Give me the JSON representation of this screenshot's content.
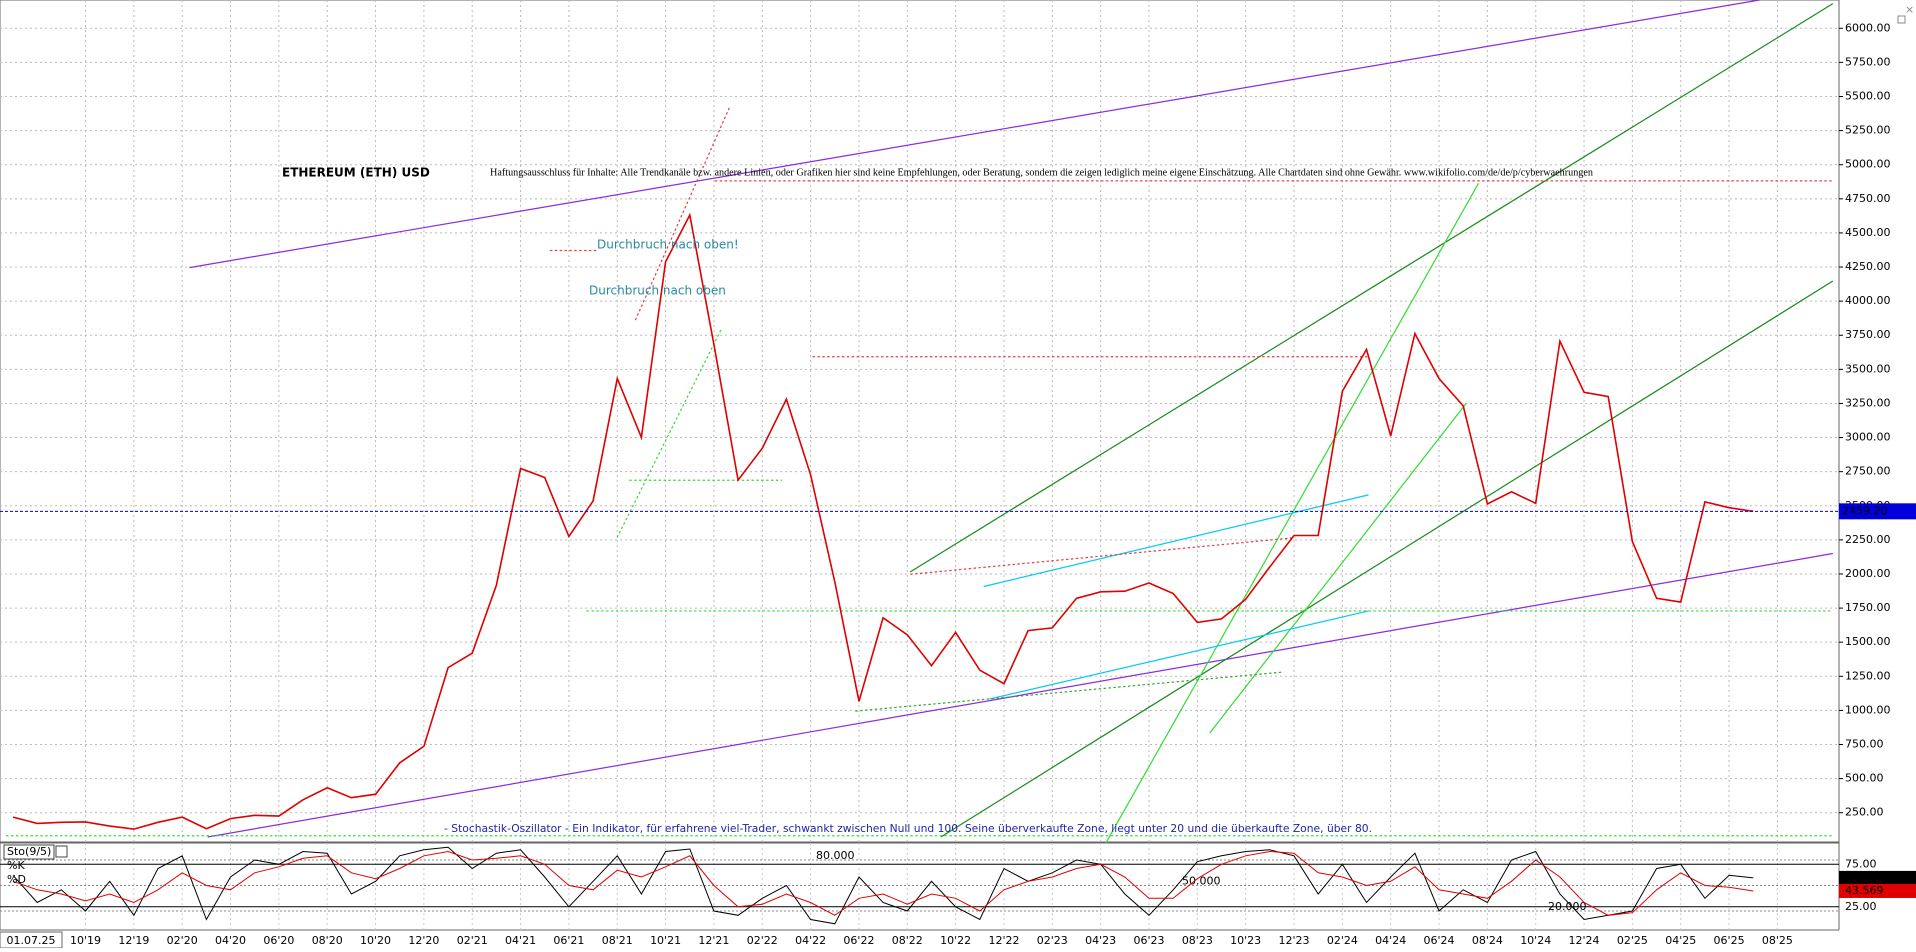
{
  "chart_data": [
    {
      "type": "line",
      "title": "ETHEREUM (ETH) USD",
      "disclaimer": "Haftungsausschluss für Inhalte: Alle Trendkanäle bzw. andere Linien, oder Grafiken hier sind keine Empfehlungen, oder Beratung, sondern die zeigen lediglich meine eigene Einschätzung. Alle Chartdaten sind ohne Gewähr. www.wikifolio.com/de/de/p/cyberwaehrungen",
      "annotations": [
        "Durchbruch nach oben!",
        "Durchbruch nach oben"
      ],
      "date_label": "01.07.25",
      "categories": [
        null,
        null,
        null,
        "10'19",
        null,
        "12'19",
        null,
        "02'20",
        null,
        "04'20",
        null,
        "06'20",
        null,
        "08'20",
        null,
        "10'20",
        null,
        "12'20",
        null,
        "02'21",
        null,
        "04'21",
        null,
        "06'21",
        null,
        "08'21",
        null,
        "10'21",
        null,
        "12'21",
        null,
        "02'22",
        null,
        "04'22",
        null,
        "06'22",
        null,
        "08'22",
        null,
        "10'22",
        null,
        "12'22",
        null,
        "02'23",
        null,
        "04'23",
        null,
        "06'23",
        null,
        "08'23",
        null,
        "10'23",
        null,
        "12'23",
        null,
        "02'24",
        null,
        "04'24",
        null,
        "06'24",
        null,
        "08'24",
        null,
        "10'24",
        null,
        "12'24",
        null,
        "02'25",
        null,
        "04'25",
        null,
        "06'25",
        null,
        "08'25"
      ],
      "values": [
        218,
        172,
        180,
        183,
        152,
        130,
        180,
        218,
        133,
        207,
        231,
        225,
        345,
        433,
        360,
        386,
        615,
        737,
        1314,
        1419,
        1918,
        2773,
        2707,
        2275,
        2536,
        3433,
        3001,
        4288,
        4631,
        3683,
        2688,
        2922,
        3282,
        2727,
        1942,
        1067,
        1679,
        1554,
        1328,
        1572,
        1295,
        1196,
        1585,
        1605,
        1822,
        1869,
        1874,
        1934,
        1857,
        1645,
        1671,
        1815,
        2052,
        2282,
        2283,
        3340,
        3646,
        3012,
        3762,
        3433,
        3232,
        2513,
        2602,
        2518,
        3706,
        3332,
        3300,
        2237,
        1822,
        1794,
        2528,
        2486,
        2459.2,
        null
      ],
      "color": "#e00000",
      "ylim": [
        50,
        6200
      ],
      "yticks": [
        {
          "value": 250,
          "label": "250.00"
        },
        {
          "value": 500,
          "label": "500.00"
        },
        {
          "value": 750,
          "label": "750.00"
        },
        {
          "value": 1000,
          "label": "1000.00"
        },
        {
          "value": 1250,
          "label": "1250.00"
        },
        {
          "value": 1500,
          "label": "1500.00"
        },
        {
          "value": 1750,
          "label": "1750.00"
        },
        {
          "value": 2000,
          "label": "2000.00"
        },
        {
          "value": 2250,
          "label": "2250.00"
        },
        {
          "value": 2500,
          "label": "2500.00"
        },
        {
          "value": 2750,
          "label": "2750.00"
        },
        {
          "value": 3000,
          "label": "3000.00"
        },
        {
          "value": 3250,
          "label": "3250.00"
        },
        {
          "value": 3500,
          "label": "3500.00"
        },
        {
          "value": 3750,
          "label": "3750.00"
        },
        {
          "value": 4000,
          "label": "4000.00"
        },
        {
          "value": 4250,
          "label": "4250.00"
        },
        {
          "value": 4500,
          "label": "4500.00"
        },
        {
          "value": 4750,
          "label": "4750.00"
        },
        {
          "value": 5000,
          "label": "5000.00"
        },
        {
          "value": 5250,
          "label": "5250.00"
        },
        {
          "value": 5500,
          "label": "5500.00"
        },
        {
          "value": 5750,
          "label": "5750.00"
        },
        {
          "value": 6000,
          "label": "6000.00"
        }
      ],
      "grid": true,
      "last_price": {
        "value": 2459.2,
        "label": "2459.20"
      }
    },
    {
      "type": "line",
      "title": "Sto(9/5)",
      "note": "- Stochastik-Oszillator - Ein Indikator, für erfahrene viel-Trader, schwankt zwischen Null und 100. Seine überverkaufte Zone, liegt unter 20 und die überkaufte Zone, über 80.",
      "series": [
        {
          "name": "%K",
          "color": "#000000",
          "values": [
            62,
            30,
            45,
            20,
            55,
            15,
            70,
            85,
            10,
            60,
            80,
            75,
            90,
            88,
            40,
            55,
            85,
            92,
            95,
            70,
            88,
            92,
            60,
            25,
            55,
            85,
            40,
            90,
            93,
            20,
            15,
            35,
            50,
            10,
            5,
            60,
            30,
            20,
            55,
            25,
            10,
            70,
            55,
            65,
            80,
            75,
            40,
            15,
            45,
            78,
            85,
            90,
            92,
            85,
            40,
            75,
            30,
            60,
            88,
            20,
            45,
            30,
            80,
            90,
            40,
            10,
            15,
            20,
            70,
            75,
            35,
            62,
            58.94,
            null
          ]
        },
        {
          "name": "%D",
          "color": "#e00000",
          "values": [
            55,
            45,
            40,
            32,
            40,
            30,
            45,
            65,
            50,
            45,
            65,
            72,
            82,
            85,
            65,
            58,
            70,
            85,
            90,
            80,
            82,
            85,
            75,
            50,
            45,
            68,
            60,
            72,
            85,
            50,
            25,
            28,
            40,
            30,
            15,
            35,
            40,
            28,
            40,
            35,
            20,
            45,
            55,
            60,
            70,
            75,
            60,
            35,
            35,
            58,
            75,
            85,
            90,
            88,
            65,
            60,
            50,
            55,
            72,
            45,
            40,
            35,
            55,
            80,
            60,
            30,
            15,
            18,
            45,
            65,
            50,
            48,
            43.569,
            null
          ]
        }
      ],
      "ylim": [
        0,
        100
      ],
      "yticks": [
        {
          "value": 75,
          "label": "75.00"
        },
        {
          "value": 25,
          "label": "25.00"
        }
      ],
      "levels": [
        {
          "value": 80,
          "label": "80.000"
        },
        {
          "value": 50,
          "label": "50.000"
        },
        {
          "value": 20,
          "label": "20.000"
        }
      ],
      "last_labels": [
        {
          "value": 58.94,
          "label": "58.94"
        },
        {
          "value": 43.569,
          "label": "43.569"
        }
      ]
    }
  ]
}
